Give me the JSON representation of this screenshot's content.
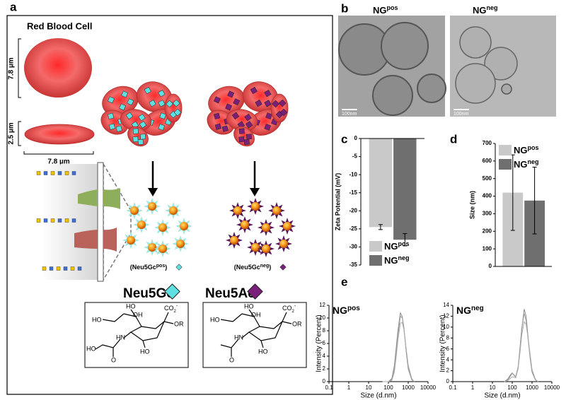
{
  "panel_labels": [
    "a",
    "b",
    "c",
    "d",
    "e"
  ],
  "rbc": {
    "title": "Red Blood Cell",
    "diameter": "7.8 µm",
    "thickness": "2.5 µm",
    "width": "7.8 µm"
  },
  "groups": [
    [
      "(Neu5Gc",
      "pos",
      ")"
    ],
    [
      "(Neu5Gc",
      "neg",
      ")"
    ]
  ],
  "sugars": [
    {
      "name": "Neu5Gc",
      "atoms": [
        "HO",
        "OH",
        "HO",
        "CO",
        "2",
        "-",
        "OR",
        "HN",
        "HO",
        "HO",
        "O"
      ]
    },
    {
      "name": "Neu5Ac",
      "atoms": [
        "HO",
        "OH",
        "HO",
        "CO",
        "2",
        "-",
        "OR",
        "HN",
        "HO",
        "O"
      ]
    }
  ],
  "tem": [
    {
      "label": [
        "NG",
        "pos"
      ],
      "scale": "100nm"
    },
    {
      "label": [
        "NG",
        "neg"
      ],
      "scale": "100nm"
    }
  ],
  "chart_data": [
    {
      "type": "bar",
      "ylabel": "Zeta Potential (mV)",
      "ylim": [
        -35,
        0
      ],
      "yticks": [
        0,
        -5,
        -10,
        -15,
        -20,
        -25,
        -30,
        -35
      ],
      "legend": "lower right",
      "series": [
        {
          "name": [
            "NG",
            "pos"
          ],
          "color": "#c9c9c9",
          "values": [
            -24.5
          ],
          "errors": [
            0.7
          ]
        },
        {
          "name": [
            "NG",
            "neg"
          ],
          "color": "#6f6f6f",
          "values": [
            -28
          ],
          "errors": [
            1.7
          ]
        }
      ]
    },
    {
      "type": "bar",
      "ylabel": "Size (nm)",
      "ylim": [
        0,
        700
      ],
      "yticks": [
        0,
        100,
        200,
        300,
        400,
        500,
        600,
        700
      ],
      "legend": "upper left",
      "series": [
        {
          "name": [
            "NG",
            "pos"
          ],
          "color": "#c9c9c9",
          "values": [
            420
          ],
          "errors": [
            215
          ]
        },
        {
          "name": [
            "NG",
            "neg"
          ],
          "color": "#6f6f6f",
          "values": [
            375
          ],
          "errors": [
            190
          ]
        }
      ]
    },
    {
      "type": "line",
      "title": [
        "NG",
        "pos"
      ],
      "xlabel": "Size (d.nm)",
      "ylabel": "Intensity (Percent)",
      "log_x": true,
      "xlim": [
        0.1,
        10000
      ],
      "xticks": [
        0.1,
        1,
        10,
        100,
        1000,
        10000
      ],
      "ylim": [
        0,
        12
      ],
      "yticks": [
        0,
        2,
        4,
        6,
        8,
        10,
        12
      ],
      "series": [
        {
          "color": "#8a8a8a",
          "x": [
            50,
            100,
            150,
            200,
            250,
            300,
            400,
            500,
            600,
            800,
            1000,
            1500,
            2000
          ],
          "values": [
            0,
            0,
            0.5,
            2.5,
            5.5,
            8,
            10.8,
            10.2,
            8.5,
            4.5,
            2,
            0.3,
            0
          ]
        },
        {
          "color": "#9a9a9a",
          "x": [
            50,
            100,
            150,
            200,
            250,
            300,
            400,
            500,
            600,
            800,
            1000,
            1500,
            2000
          ],
          "values": [
            0,
            0,
            0.3,
            2,
            4.8,
            7.3,
            10.3,
            10,
            8.6,
            4.8,
            2.2,
            0.4,
            0
          ]
        },
        {
          "color": "#aaaaaa",
          "x": [
            50,
            100,
            150,
            200,
            250,
            300,
            400,
            500,
            600,
            800,
            1000,
            1500,
            2000
          ],
          "values": [
            0,
            0,
            0.2,
            1.5,
            4,
            6.5,
            9.2,
            9.3,
            8.2,
            5,
            2.6,
            0.5,
            0
          ]
        }
      ]
    },
    {
      "type": "line",
      "title": [
        "NG",
        "neg"
      ],
      "xlabel": "Size (d.nm)",
      "ylabel": "Intensity (Percent)",
      "log_x": true,
      "xlim": [
        0.1,
        10000
      ],
      "xticks": [
        0.1,
        1,
        10,
        100,
        1000,
        10000
      ],
      "ylim": [
        0,
        14
      ],
      "yticks": [
        0,
        2,
        4,
        6,
        8,
        10,
        12,
        14
      ],
      "series": [
        {
          "color": "#8a8a8a",
          "x": [
            40,
            60,
            80,
            100,
            120,
            150,
            200,
            250,
            300,
            400,
            500,
            600,
            800,
            1000,
            1500,
            2000
          ],
          "values": [
            0,
            0.5,
            1.2,
            1.6,
            1.2,
            0.8,
            2.5,
            6,
            9.5,
            13.3,
            12,
            9,
            4.5,
            1.8,
            0.3,
            0
          ]
        },
        {
          "color": "#9a9a9a",
          "x": [
            40,
            60,
            80,
            100,
            120,
            150,
            200,
            250,
            300,
            400,
            500,
            600,
            800,
            1000,
            1500,
            2000
          ],
          "values": [
            0,
            0.3,
            1,
            1.5,
            1.3,
            0.9,
            2.8,
            6.5,
            9.8,
            12.5,
            11.2,
            8.5,
            4.3,
            1.7,
            0.3,
            0
          ]
        },
        {
          "color": "#aaaaaa",
          "x": [
            40,
            60,
            80,
            100,
            120,
            150,
            200,
            250,
            300,
            400,
            500,
            600,
            800,
            1000,
            1500,
            2000
          ],
          "values": [
            0,
            0.2,
            0.6,
            0.9,
            0.8,
            0.7,
            2.4,
            5.5,
            8.5,
            11,
            10.5,
            8.6,
            5,
            2.2,
            0.4,
            0
          ]
        }
      ]
    }
  ]
}
